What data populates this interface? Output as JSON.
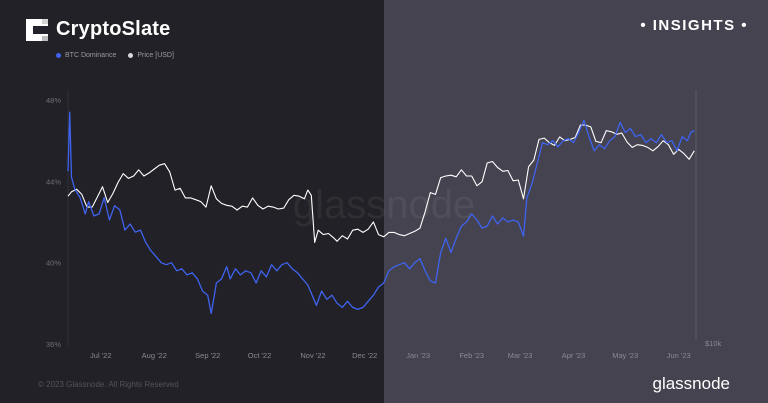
{
  "brand": {
    "name": "CryptoSlate",
    "tag": "INSIGHTS"
  },
  "footer": {
    "copyright": "© 2023 Glassnode. All Rights Reserved",
    "logo_text": "glassnode"
  },
  "watermark": "glassnode",
  "colors": {
    "btc_dominance": "#3f63f0",
    "price": "#ffffff",
    "left_bg": "#222127",
    "right_bg": "#44434f"
  },
  "chart_data": {
    "type": "line",
    "legend": [
      {
        "name": "BTC Dominance",
        "color": "#3f63f0"
      },
      {
        "name": "Price [USD]",
        "color": "#d7d6de"
      }
    ],
    "x_ticks": [
      "Jul '22",
      "Aug '22",
      "Sep '22",
      "Oct '22",
      "Nov '22",
      "Dec '22",
      "Jan '23",
      "Feb '23",
      "Mar '23",
      "Apr '23",
      "May '23",
      "Jun '23"
    ],
    "x_range": [
      "2022-06-19",
      "2023-06-18"
    ],
    "y_left_ticks": [
      "48%",
      "44%",
      "40%",
      "36%"
    ],
    "y_left_range": [
      36,
      48
    ],
    "y_right_tick": "$10k",
    "series": [
      {
        "name": "BTC Dominance",
        "unit": "%",
        "points": [
          [
            "2022-06-19",
            44.5
          ],
          [
            "2022-06-20",
            47.4
          ],
          [
            "2022-06-21",
            44.2
          ],
          [
            "2022-06-23",
            43.6
          ],
          [
            "2022-06-26",
            43.2
          ],
          [
            "2022-06-29",
            42.4
          ],
          [
            "2022-07-01",
            43.0
          ],
          [
            "2022-07-04",
            42.3
          ],
          [
            "2022-07-07",
            42.4
          ],
          [
            "2022-07-10",
            43.2
          ],
          [
            "2022-07-13",
            42.1
          ],
          [
            "2022-07-16",
            42.8
          ],
          [
            "2022-07-19",
            42.6
          ],
          [
            "2022-07-22",
            41.6
          ],
          [
            "2022-07-25",
            41.9
          ],
          [
            "2022-07-28",
            41.5
          ],
          [
            "2022-07-31",
            41.6
          ],
          [
            "2022-08-03",
            41.0
          ],
          [
            "2022-08-06",
            40.6
          ],
          [
            "2022-08-09",
            40.3
          ],
          [
            "2022-08-12",
            40.0
          ],
          [
            "2022-08-15",
            39.9
          ],
          [
            "2022-08-18",
            40.0
          ],
          [
            "2022-08-21",
            39.6
          ],
          [
            "2022-08-24",
            39.7
          ],
          [
            "2022-08-27",
            39.4
          ],
          [
            "2022-08-30",
            39.5
          ],
          [
            "2022-09-02",
            39.2
          ],
          [
            "2022-09-05",
            38.6
          ],
          [
            "2022-09-08",
            38.4
          ],
          [
            "2022-09-10",
            37.5
          ],
          [
            "2022-09-13",
            39.0
          ],
          [
            "2022-09-16",
            39.2
          ],
          [
            "2022-09-19",
            39.8
          ],
          [
            "2022-09-21",
            39.2
          ],
          [
            "2022-09-24",
            39.7
          ],
          [
            "2022-09-27",
            39.4
          ],
          [
            "2022-09-30",
            39.6
          ],
          [
            "2022-10-03",
            39.5
          ],
          [
            "2022-10-06",
            39.0
          ],
          [
            "2022-10-09",
            39.6
          ],
          [
            "2022-10-12",
            39.3
          ],
          [
            "2022-10-15",
            39.9
          ],
          [
            "2022-10-18",
            39.6
          ],
          [
            "2022-10-21",
            39.9
          ],
          [
            "2022-10-24",
            40.0
          ],
          [
            "2022-10-27",
            39.7
          ],
          [
            "2022-10-30",
            39.5
          ],
          [
            "2022-11-02",
            39.2
          ],
          [
            "2022-11-05",
            38.9
          ],
          [
            "2022-11-08",
            38.3
          ],
          [
            "2022-11-10",
            37.9
          ],
          [
            "2022-11-13",
            38.6
          ],
          [
            "2022-11-16",
            38.2
          ],
          [
            "2022-11-19",
            38.4
          ],
          [
            "2022-11-22",
            38.0
          ],
          [
            "2022-11-25",
            37.8
          ],
          [
            "2022-11-28",
            38.1
          ],
          [
            "2022-12-01",
            37.8
          ],
          [
            "2022-12-04",
            37.7
          ],
          [
            "2022-12-07",
            37.8
          ],
          [
            "2022-12-10",
            38.1
          ],
          [
            "2022-12-13",
            38.4
          ],
          [
            "2022-12-16",
            38.8
          ],
          [
            "2022-12-19",
            39.0
          ],
          [
            "2022-12-22",
            39.6
          ],
          [
            "2022-12-25",
            39.8
          ],
          [
            "2022-12-28",
            39.9
          ],
          [
            "2022-12-31",
            40.0
          ],
          [
            "2023-01-03",
            39.7
          ],
          [
            "2023-01-06",
            40.0
          ],
          [
            "2023-01-09",
            40.2
          ],
          [
            "2023-01-12",
            39.6
          ],
          [
            "2023-01-15",
            39.1
          ],
          [
            "2023-01-18",
            39.0
          ],
          [
            "2023-01-21",
            40.5
          ],
          [
            "2023-01-24",
            41.2
          ],
          [
            "2023-01-27",
            40.5
          ],
          [
            "2023-01-30",
            41.2
          ],
          [
            "2023-02-02",
            41.8
          ],
          [
            "2023-02-05",
            42.0
          ],
          [
            "2023-02-08",
            42.4
          ],
          [
            "2023-02-11",
            42.1
          ],
          [
            "2023-02-14",
            41.7
          ],
          [
            "2023-02-17",
            41.8
          ],
          [
            "2023-02-20",
            42.3
          ],
          [
            "2023-02-23",
            41.9
          ],
          [
            "2023-02-26",
            42.2
          ],
          [
            "2023-03-01",
            42.0
          ],
          [
            "2023-03-04",
            42.1
          ],
          [
            "2023-03-07",
            42.0
          ],
          [
            "2023-03-10",
            41.3
          ],
          [
            "2023-03-12",
            43.2
          ],
          [
            "2023-03-15",
            43.9
          ],
          [
            "2023-03-18",
            44.9
          ],
          [
            "2023-03-21",
            45.9
          ],
          [
            "2023-03-24",
            45.8
          ],
          [
            "2023-03-27",
            46.0
          ],
          [
            "2023-03-30",
            45.7
          ],
          [
            "2023-04-02",
            46.0
          ],
          [
            "2023-04-05",
            46.1
          ],
          [
            "2023-04-08",
            45.9
          ],
          [
            "2023-04-11",
            46.4
          ],
          [
            "2023-04-14",
            47.0
          ],
          [
            "2023-04-17",
            46.2
          ],
          [
            "2023-04-20",
            45.5
          ],
          [
            "2023-04-23",
            45.8
          ],
          [
            "2023-04-26",
            45.6
          ],
          [
            "2023-04-29",
            46.0
          ],
          [
            "2023-05-02",
            46.2
          ],
          [
            "2023-05-05",
            46.9
          ],
          [
            "2023-05-08",
            46.4
          ],
          [
            "2023-05-11",
            46.6
          ],
          [
            "2023-05-14",
            46.2
          ],
          [
            "2023-05-17",
            46.3
          ],
          [
            "2023-05-20",
            45.9
          ],
          [
            "2023-05-23",
            46.1
          ],
          [
            "2023-05-26",
            45.9
          ],
          [
            "2023-05-29",
            46.3
          ],
          [
            "2023-06-01",
            45.9
          ],
          [
            "2023-06-04",
            46.0
          ],
          [
            "2023-06-07",
            45.5
          ],
          [
            "2023-06-10",
            46.2
          ],
          [
            "2023-06-13",
            46.0
          ],
          [
            "2023-06-15",
            46.4
          ],
          [
            "2023-06-17",
            46.5
          ]
        ]
      },
      {
        "name": "Price [USD]",
        "unit": "USD",
        "points": [
          [
            "2022-06-19",
            20500
          ],
          [
            "2022-06-21",
            21000
          ],
          [
            "2022-06-24",
            21300
          ],
          [
            "2022-06-27",
            20700
          ],
          [
            "2022-06-30",
            19300
          ],
          [
            "2022-07-03",
            19300
          ],
          [
            "2022-07-06",
            20400
          ],
          [
            "2022-07-09",
            21600
          ],
          [
            "2022-07-12",
            19800
          ],
          [
            "2022-07-15",
            20800
          ],
          [
            "2022-07-18",
            22100
          ],
          [
            "2022-07-21",
            23200
          ],
          [
            "2022-07-24",
            22600
          ],
          [
            "2022-07-27",
            22900
          ],
          [
            "2022-07-30",
            23700
          ],
          [
            "2022-08-02",
            22900
          ],
          [
            "2022-08-05",
            23300
          ],
          [
            "2022-08-08",
            23800
          ],
          [
            "2022-08-11",
            24300
          ],
          [
            "2022-08-14",
            24500
          ],
          [
            "2022-08-17",
            23400
          ],
          [
            "2022-08-20",
            21200
          ],
          [
            "2022-08-23",
            21400
          ],
          [
            "2022-08-26",
            20300
          ],
          [
            "2022-08-29",
            20300
          ],
          [
            "2022-09-01",
            20100
          ],
          [
            "2022-09-04",
            19900
          ],
          [
            "2022-09-07",
            19300
          ],
          [
            "2022-09-10",
            21700
          ],
          [
            "2022-09-13",
            20200
          ],
          [
            "2022-09-16",
            19700
          ],
          [
            "2022-09-19",
            19500
          ],
          [
            "2022-09-22",
            19400
          ],
          [
            "2022-09-25",
            19000
          ],
          [
            "2022-09-28",
            19400
          ],
          [
            "2022-10-01",
            19300
          ],
          [
            "2022-10-04",
            20300
          ],
          [
            "2022-10-07",
            19500
          ],
          [
            "2022-10-10",
            19100
          ],
          [
            "2022-10-13",
            19400
          ],
          [
            "2022-10-16",
            19300
          ],
          [
            "2022-10-19",
            19100
          ],
          [
            "2022-10-22",
            19200
          ],
          [
            "2022-10-25",
            20100
          ],
          [
            "2022-10-28",
            20600
          ],
          [
            "2022-10-31",
            20500
          ],
          [
            "2022-11-03",
            20200
          ],
          [
            "2022-11-05",
            21200
          ],
          [
            "2022-11-07",
            20600
          ],
          [
            "2022-11-09",
            15900
          ],
          [
            "2022-11-11",
            17000
          ],
          [
            "2022-11-14",
            16600
          ],
          [
            "2022-11-17",
            16700
          ],
          [
            "2022-11-20",
            16300
          ],
          [
            "2022-11-22",
            16000
          ],
          [
            "2022-11-25",
            16500
          ],
          [
            "2022-11-28",
            16200
          ],
          [
            "2022-12-01",
            17000
          ],
          [
            "2022-12-04",
            17100
          ],
          [
            "2022-12-07",
            16800
          ],
          [
            "2022-12-10",
            17100
          ],
          [
            "2022-12-13",
            17800
          ],
          [
            "2022-12-16",
            16600
          ],
          [
            "2022-12-19",
            16400
          ],
          [
            "2022-12-22",
            16800
          ],
          [
            "2022-12-25",
            16800
          ],
          [
            "2022-12-28",
            16600
          ],
          [
            "2022-12-31",
            16500
          ],
          [
            "2023-01-03",
            16700
          ],
          [
            "2023-01-06",
            16900
          ],
          [
            "2023-01-09",
            17200
          ],
          [
            "2023-01-12",
            18800
          ],
          [
            "2023-01-15",
            20900
          ],
          [
            "2023-01-18",
            20700
          ],
          [
            "2023-01-21",
            22700
          ],
          [
            "2023-01-24",
            22900
          ],
          [
            "2023-01-27",
            23000
          ],
          [
            "2023-01-30",
            22800
          ],
          [
            "2023-02-02",
            23700
          ],
          [
            "2023-02-05",
            22900
          ],
          [
            "2023-02-08",
            22900
          ],
          [
            "2023-02-11",
            21700
          ],
          [
            "2023-02-14",
            22200
          ],
          [
            "2023-02-17",
            24600
          ],
          [
            "2023-02-20",
            24800
          ],
          [
            "2023-02-23",
            24000
          ],
          [
            "2023-02-26",
            23500
          ],
          [
            "2023-03-01",
            23600
          ],
          [
            "2023-03-04",
            22300
          ],
          [
            "2023-03-07",
            22400
          ],
          [
            "2023-03-10",
            20200
          ],
          [
            "2023-03-13",
            24100
          ],
          [
            "2023-03-16",
            25000
          ],
          [
            "2023-03-19",
            28000
          ],
          [
            "2023-03-22",
            28200
          ],
          [
            "2023-03-25",
            27500
          ],
          [
            "2023-03-28",
            27100
          ],
          [
            "2023-03-31",
            28400
          ],
          [
            "2023-04-03",
            27800
          ],
          [
            "2023-04-06",
            28000
          ],
          [
            "2023-04-09",
            28300
          ],
          [
            "2023-04-12",
            30300
          ],
          [
            "2023-04-15",
            30300
          ],
          [
            "2023-04-18",
            30000
          ],
          [
            "2023-04-21",
            27700
          ],
          [
            "2023-04-24",
            27500
          ],
          [
            "2023-04-27",
            29400
          ],
          [
            "2023-04-30",
            29200
          ],
          [
            "2023-05-03",
            28800
          ],
          [
            "2023-05-06",
            29000
          ],
          [
            "2023-05-09",
            27600
          ],
          [
            "2023-05-12",
            26800
          ],
          [
            "2023-05-15",
            27200
          ],
          [
            "2023-05-18",
            27100
          ],
          [
            "2023-05-21",
            26800
          ],
          [
            "2023-05-24",
            26300
          ],
          [
            "2023-05-27",
            26900
          ],
          [
            "2023-05-30",
            27800
          ],
          [
            "2023-06-02",
            27200
          ],
          [
            "2023-06-05",
            25800
          ],
          [
            "2023-06-08",
            26500
          ],
          [
            "2023-06-11",
            25900
          ],
          [
            "2023-06-14",
            25100
          ],
          [
            "2023-06-17",
            26300
          ]
        ]
      }
    ],
    "shaded_region": "right half lighter background from Dec '22 onward"
  }
}
